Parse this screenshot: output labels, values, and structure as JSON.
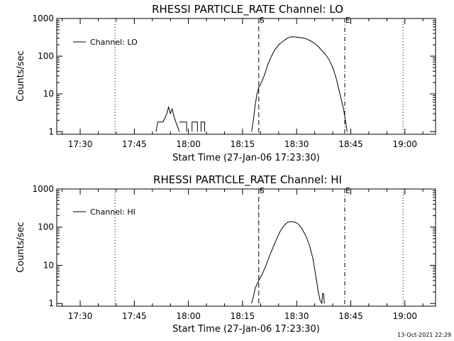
{
  "footer": {
    "timestamp": "13-Oct-2021 22:29"
  },
  "chart_data": [
    {
      "type": "line",
      "title": "RHESSI PARTICLE_RATE Channel: LO",
      "xlabel": "Start Time (27-Jan-06 17:23:30)",
      "ylabel": "Counts/sec",
      "yscale": "log",
      "ylim": [
        0.85,
        1000
      ],
      "xlim": [
        "17:23:30",
        "19:08:30"
      ],
      "x_ticks": [
        "17:30",
        "17:45",
        "18:00",
        "18:15",
        "18:30",
        "18:45",
        "19:00"
      ],
      "y_ticks": [
        "1",
        "10",
        "100",
        "1000"
      ],
      "legend": {
        "position": "top-left",
        "entries": [
          "Channel: LO"
        ]
      },
      "markers": [
        {
          "label": "",
          "time": "17:39:40",
          "style": "dotted"
        },
        {
          "label": "S",
          "time": "18:19:30",
          "style": "dashed"
        },
        {
          "label": "E",
          "time": "18:43:20",
          "style": "dashdot"
        },
        {
          "label": "",
          "time": "18:59:30",
          "style": "dotted"
        }
      ],
      "series": [
        {
          "name": "Channel: LO",
          "segments": [
            [
              [
                "17:51:00",
                1
              ],
              [
                "17:51:30",
                1.8
              ],
              [
                "17:53:00",
                1.8
              ],
              [
                "17:54:00",
                3
              ],
              [
                "17:54:30",
                4.5
              ],
              [
                "17:55:00",
                3
              ],
              [
                "17:55:30",
                4
              ],
              [
                "17:56:00",
                2.5
              ],
              [
                "17:56:30",
                1.8
              ],
              [
                "17:57:30",
                1
              ]
            ],
            [
              [
                "17:57:30",
                1.8
              ],
              [
                "17:59:30",
                1.8
              ],
              [
                "17:59:30",
                1
              ]
            ],
            [
              [
                "18:01:00",
                1
              ],
              [
                "18:01:00",
                1.8
              ],
              [
                "18:02:30",
                1.8
              ],
              [
                "18:02:30",
                1
              ]
            ],
            [
              [
                "18:03:30",
                1
              ],
              [
                "18:03:30",
                1.8
              ],
              [
                "18:04:30",
                1.8
              ],
              [
                "18:04:30",
                1
              ]
            ],
            [
              [
                "18:17:30",
                1
              ],
              [
                "18:18:00",
                2
              ],
              [
                "18:18:30",
                5
              ],
              [
                "18:19:00",
                10
              ],
              [
                "18:19:30",
                15
              ],
              [
                "18:20:00",
                18
              ],
              [
                "18:21:00",
                30
              ],
              [
                "18:22:00",
                60
              ],
              [
                "18:23:00",
                100
              ],
              [
                "18:24:00",
                150
              ],
              [
                "18:25:00",
                200
              ],
              [
                "18:26:00",
                240
              ],
              [
                "18:27:00",
                280
              ],
              [
                "18:28:00",
                320
              ],
              [
                "18:29:00",
                330
              ],
              [
                "18:30:00",
                320
              ],
              [
                "18:31:00",
                310
              ],
              [
                "18:32:00",
                300
              ],
              [
                "18:33:00",
                280
              ],
              [
                "18:34:00",
                250
              ],
              [
                "18:35:00",
                220
              ],
              [
                "18:36:00",
                180
              ],
              [
                "18:37:00",
                140
              ],
              [
                "18:38:00",
                110
              ],
              [
                "18:39:00",
                80
              ],
              [
                "18:40:00",
                50
              ],
              [
                "18:41:00",
                25
              ],
              [
                "18:42:00",
                10
              ],
              [
                "18:43:00",
                4
              ],
              [
                "18:43:30",
                2
              ],
              [
                "18:44:00",
                1
              ]
            ]
          ]
        }
      ]
    },
    {
      "type": "line",
      "title": "RHESSI PARTICLE_RATE Channel: HI",
      "xlabel": "Start Time (27-Jan-06 17:23:30)",
      "ylabel": "Counts/sec",
      "yscale": "log",
      "ylim": [
        0.85,
        1000
      ],
      "xlim": [
        "17:23:30",
        "19:08:30"
      ],
      "x_ticks": [
        "17:30",
        "17:45",
        "18:00",
        "18:15",
        "18:30",
        "18:45",
        "19:00"
      ],
      "y_ticks": [
        "1",
        "10",
        "100",
        "1000"
      ],
      "legend": {
        "position": "top-left",
        "entries": [
          "Channel: HI"
        ]
      },
      "markers": [
        {
          "label": "",
          "time": "17:39:40",
          "style": "dotted"
        },
        {
          "label": "S",
          "time": "18:19:30",
          "style": "dashed"
        },
        {
          "label": "E",
          "time": "18:43:20",
          "style": "dashdot"
        },
        {
          "label": "",
          "time": "18:59:30",
          "style": "dotted"
        }
      ],
      "series": [
        {
          "name": "Channel: HI",
          "segments": [
            [
              [
                "18:17:30",
                1
              ],
              [
                "18:18:00",
                1.5
              ],
              [
                "18:18:30",
                2.5
              ],
              [
                "18:19:30",
                4
              ],
              [
                "18:20:30",
                6
              ],
              [
                "18:21:30",
                10
              ],
              [
                "18:22:30",
                18
              ],
              [
                "18:23:30",
                30
              ],
              [
                "18:24:30",
                50
              ],
              [
                "18:25:30",
                80
              ],
              [
                "18:26:30",
                110
              ],
              [
                "18:27:30",
                135
              ],
              [
                "18:28:30",
                140
              ],
              [
                "18:29:30",
                135
              ],
              [
                "18:30:30",
                120
              ],
              [
                "18:31:30",
                90
              ],
              [
                "18:32:30",
                60
              ],
              [
                "18:33:30",
                35
              ],
              [
                "18:34:30",
                15
              ],
              [
                "18:35:00",
                8
              ],
              [
                "18:35:30",
                4
              ],
              [
                "18:36:00",
                2
              ],
              [
                "18:36:30",
                1.2
              ],
              [
                "18:37:00",
                1
              ]
            ],
            [
              [
                "18:37:00",
                1
              ],
              [
                "18:37:10",
                1.8
              ],
              [
                "18:37:30",
                1.8
              ],
              [
                "18:37:40",
                1
              ]
            ]
          ]
        }
      ]
    }
  ]
}
